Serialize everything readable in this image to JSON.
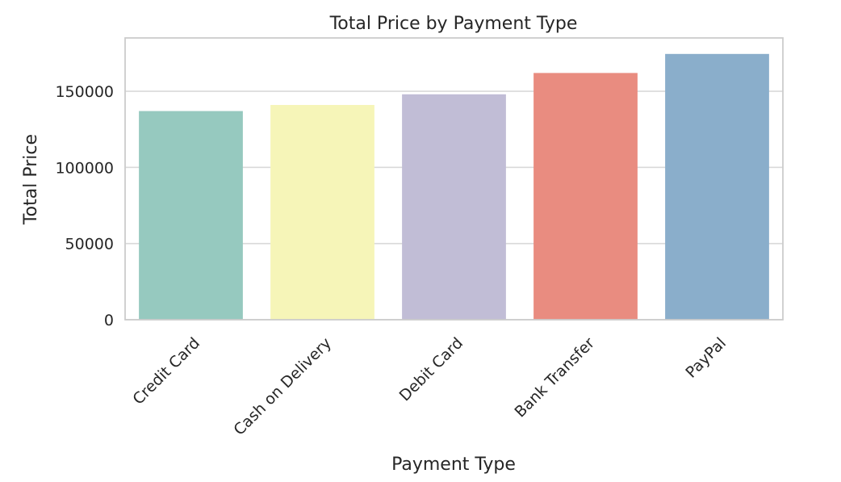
{
  "chart_data": {
    "type": "bar",
    "title": "Total Price by Payment Type",
    "xlabel": "Payment Type",
    "ylabel": "Total Price",
    "categories": [
      "Credit Card",
      "Cash on Delivery",
      "Debit Card",
      "Bank Transfer",
      "PayPal"
    ],
    "values": [
      137000,
      141000,
      148000,
      162000,
      174500
    ],
    "colors": [
      "#96c9bf",
      "#f6f5b8",
      "#c1bdd6",
      "#e98c80",
      "#8aaecb"
    ],
    "ylim": [
      0,
      185000
    ],
    "yticks": [
      0,
      50000,
      100000,
      150000
    ],
    "ytick_labels": [
      "0",
      "50000",
      "100000",
      "150000"
    ],
    "grid": true,
    "grid_axis": "y",
    "legend": false
  }
}
